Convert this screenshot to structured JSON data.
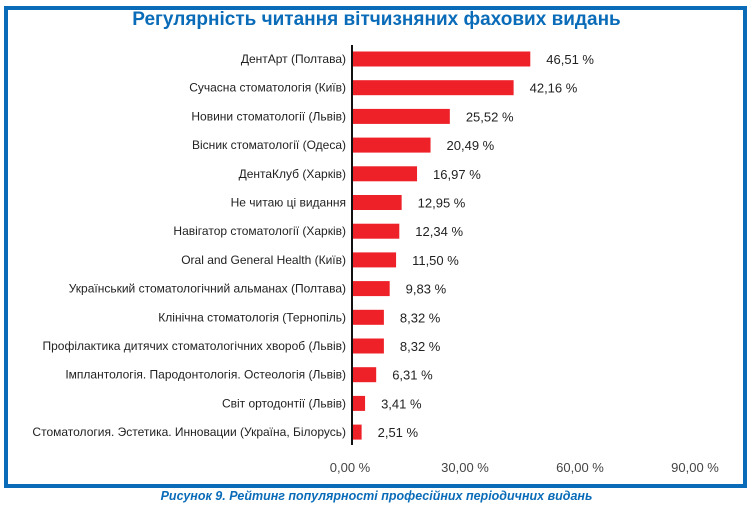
{
  "chart_data": {
    "type": "bar",
    "orientation": "horizontal",
    "title": "Регулярність читання вітчизняних фахових видань",
    "caption": "Рисунок 9. Рейтинг популярності професійних періодичних видань",
    "categories": [
      "ДентАрт (Полтава)",
      "Сучасна стоматологія (Київ)",
      "Новини стоматології (Львів)",
      "Вісник стоматології (Одеса)",
      "ДентаКлуб (Харків)",
      "Не читаю ці видання",
      "Навігатор стоматології (Харків)",
      "Oral and General Health (Київ)",
      "Український стоматологічний альманах (Полтава)",
      "Клінічна стоматологія (Тернопіль)",
      "Профілактика дитячих стоматологічних хвороб (Львів)",
      "Імплантологія. Пародонтологія. Остеологія (Львів)",
      "Світ ортодонтії (Львів)",
      "Стоматология. Эстетика. Инновации (Україна, Білорусь)"
    ],
    "values": [
      46.51,
      42.16,
      25.52,
      20.49,
      16.97,
      12.95,
      12.34,
      11.5,
      9.83,
      8.32,
      8.32,
      6.31,
      3.41,
      2.51
    ],
    "data_labels": [
      "46,51 %",
      "42,16 %",
      "25,52 %",
      "20,49 %",
      "16,97 %",
      "12,95 %",
      "12,34 %",
      "11,50 %",
      "9,83 %",
      "8,32 %",
      "8,32 %",
      "6,31 %",
      "3,41 %",
      "2,51 %"
    ],
    "xticks": [
      0,
      30,
      60,
      90
    ],
    "xtick_labels": [
      "0,00 %",
      "30,00 %",
      "60,00 %",
      "90,00 %"
    ],
    "xlim": [
      0,
      90
    ],
    "xlabel": "",
    "ylabel": "",
    "grid": false,
    "bar_color": "#ee2028",
    "title_color": "#0a6cb8"
  }
}
